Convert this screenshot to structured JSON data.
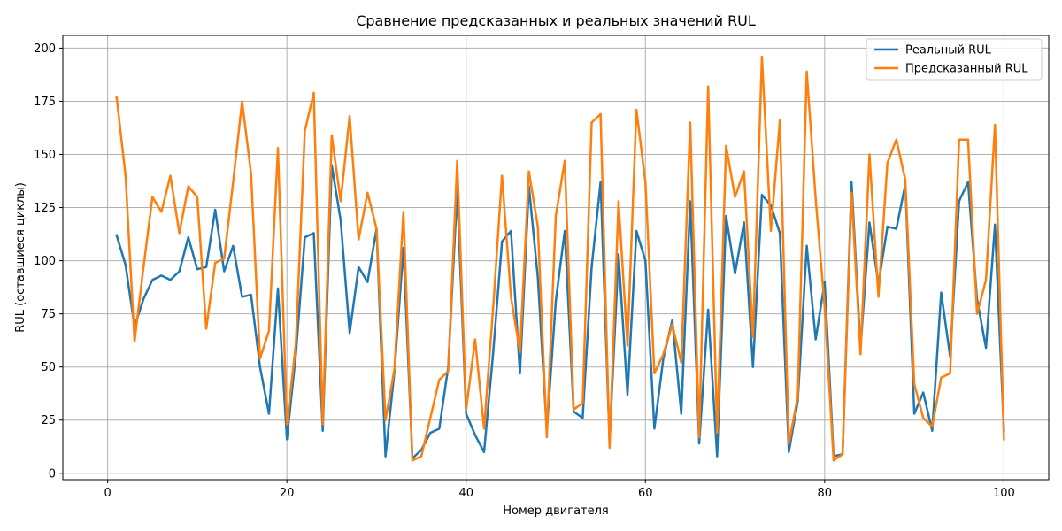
{
  "chart_data": {
    "type": "line",
    "title": "Сравнение предсказанных и реальных значений RUL",
    "xlabel": "Номер двигателя",
    "ylabel": "RUL (оставшиеся циклы)",
    "xlim": [
      -5,
      105
    ],
    "ylim": [
      -3,
      206
    ],
    "xticks": [
      0,
      20,
      40,
      60,
      80,
      100
    ],
    "yticks": [
      0,
      25,
      50,
      75,
      100,
      125,
      150,
      175,
      200
    ],
    "grid": true,
    "legend_position": "top-right",
    "x": [
      1,
      2,
      3,
      4,
      5,
      6,
      7,
      8,
      9,
      10,
      11,
      12,
      13,
      14,
      15,
      16,
      17,
      18,
      19,
      20,
      21,
      22,
      23,
      24,
      25,
      26,
      27,
      28,
      29,
      30,
      31,
      32,
      33,
      34,
      35,
      36,
      37,
      38,
      39,
      40,
      41,
      42,
      43,
      44,
      45,
      46,
      47,
      48,
      49,
      50,
      51,
      52,
      53,
      54,
      55,
      56,
      57,
      58,
      59,
      60,
      61,
      62,
      63,
      64,
      65,
      66,
      67,
      68,
      69,
      70,
      71,
      72,
      73,
      74,
      75,
      76,
      77,
      78,
      79,
      80,
      81,
      82,
      83,
      84,
      85,
      86,
      87,
      88,
      89,
      90,
      91,
      92,
      93,
      94,
      95,
      96,
      97,
      98,
      99,
      100
    ],
    "series": [
      {
        "name": "Реальный RUL",
        "color": "#1f77b4",
        "values": [
          112,
          98,
          69,
          82,
          91,
          93,
          91,
          95,
          111,
          96,
          97,
          124,
          95,
          107,
          83,
          84,
          50,
          28,
          87,
          16,
          56,
          111,
          113,
          20,
          145,
          119,
          66,
          97,
          90,
          115,
          8,
          48,
          106,
          7,
          11,
          19,
          21,
          50,
          133,
          28,
          18,
          10,
          56,
          109,
          114,
          47,
          135,
          92,
          20,
          81,
          114,
          29,
          26,
          97,
          137,
          15,
          103,
          37,
          114,
          100,
          21,
          54,
          72,
          28,
          128,
          14,
          77,
          8,
          121,
          94,
          118,
          50,
          131,
          126,
          113,
          10,
          34,
          107,
          63,
          90,
          8,
          9,
          137,
          59,
          118,
          89,
          116,
          115,
          136,
          28,
          38,
          20,
          85,
          55,
          128,
          137,
          82,
          59,
          117,
          20
        ]
      },
      {
        "name": "Предсказанный RUL",
        "color": "#ff7f0e",
        "values": [
          177,
          140,
          62,
          97,
          130,
          123,
          140,
          113,
          135,
          130,
          68,
          99,
          101,
          137,
          175,
          141,
          54,
          67,
          153,
          23,
          61,
          161,
          179,
          23,
          159,
          128,
          168,
          110,
          132,
          115,
          25,
          49,
          123,
          6,
          8,
          26,
          44,
          48,
          147,
          30,
          63,
          21,
          77,
          140,
          83,
          57,
          142,
          116,
          17,
          121,
          147,
          30,
          33,
          165,
          169,
          12,
          128,
          60,
          171,
          137,
          47,
          56,
          70,
          52,
          165,
          17,
          182,
          19,
          154,
          130,
          142,
          64,
          196,
          114,
          166,
          14,
          36,
          189,
          129,
          78,
          6,
          9,
          132,
          56,
          150,
          83,
          146,
          157,
          138,
          42,
          26,
          22,
          45,
          47,
          157,
          157,
          75,
          91,
          164,
          16
        ]
      }
    ]
  }
}
